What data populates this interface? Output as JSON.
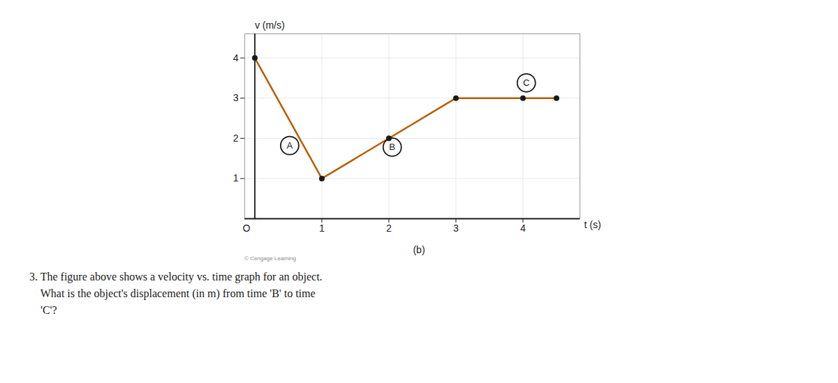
{
  "chart_data": {
    "type": "line",
    "x": [
      0,
      1,
      2,
      3,
      4,
      4.5
    ],
    "values": [
      4,
      1,
      2,
      3,
      3,
      3
    ],
    "color": "#b85c00",
    "marker": "o",
    "xlabel": "t (s)",
    "ylabel": "v (m/s)",
    "xlim": [
      -0.15,
      4.85
    ],
    "ylim": [
      0,
      4.6
    ],
    "xticks": [
      1,
      2,
      3,
      4
    ],
    "yticks": [
      1,
      2,
      3,
      4
    ],
    "grid": true,
    "annotations": [
      {
        "text": "O"
      },
      {
        "text": "A",
        "x": 0.52,
        "y": 1.82
      },
      {
        "text": "B",
        "x": 2.05,
        "y": 1.78
      },
      {
        "text": "C",
        "x": 4.05,
        "y": 3.38
      }
    ],
    "subtitle": "(b)",
    "credit": "© Cengage Learning",
    "question": [
      "3. The figure above shows a velocity vs. time graph for an object.",
      "    What is the object's displacement (in m) from time 'B' to time",
      "    'C'?"
    ]
  }
}
